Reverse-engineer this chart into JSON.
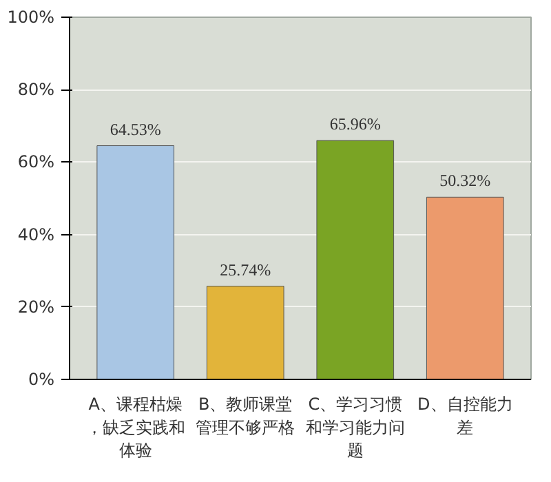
{
  "chart_data": {
    "type": "bar",
    "categories": [
      "A、课程枯燥，缺乏实践和体验",
      "B、教师课堂管理不够严格",
      "C、学习习惯和学习能力问题",
      "D、自控能力差"
    ],
    "values": [
      64.53,
      25.74,
      65.96,
      50.32
    ],
    "colors": [
      "#a9c6e4",
      "#e2b43a",
      "#7aa424",
      "#ec9a6c"
    ],
    "value_labels": [
      "64.53%",
      "25.74%",
      "65.96%",
      "50.32%"
    ],
    "ylim": [
      0,
      100
    ],
    "yticks": [
      {
        "value": 0,
        "label": "0%"
      },
      {
        "value": 20,
        "label": "20%"
      },
      {
        "value": 40,
        "label": "40%"
      },
      {
        "value": 60,
        "label": "60%"
      },
      {
        "value": 80,
        "label": "80%"
      },
      {
        "value": 100,
        "label": "100%"
      }
    ],
    "grid": "y"
  }
}
